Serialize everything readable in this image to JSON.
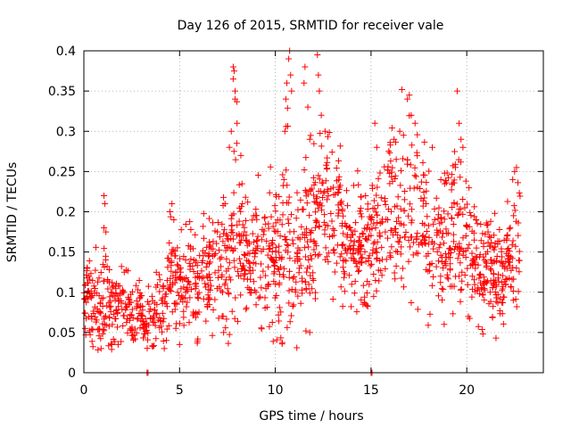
{
  "chart_data": {
    "type": "scatter",
    "title": "Day 126 of 2015, SRMTID for receiver vale",
    "xlabel": "GPS time / hours",
    "ylabel": "SRMTID / TECUs",
    "xlim": [
      0,
      24
    ],
    "ylim": [
      0,
      0.4
    ],
    "xticks": [
      0,
      5,
      10,
      15,
      20
    ],
    "yticks": [
      0,
      0.05,
      0.1,
      0.15,
      0.2,
      0.25,
      0.3,
      0.35,
      0.4
    ],
    "xtick_labels": [
      "0",
      "5",
      "10",
      "15",
      "20"
    ],
    "ytick_labels": [
      "0",
      "0.05",
      "0.1",
      "0.15",
      "0.2",
      "0.25",
      "0.3",
      "0.35",
      "0.4"
    ],
    "grid": true,
    "marker": "+",
    "color": "#ff0000",
    "series": [
      {
        "name": "SRMTID",
        "trend": {
          "x": [
            0,
            1,
            2,
            2.5,
            3,
            3.5,
            4,
            4.5,
            5,
            5.5,
            6,
            7,
            7.5,
            8,
            8.5,
            9,
            10,
            10.5,
            11,
            11.5,
            12,
            12.5,
            13,
            13.5,
            14,
            15,
            15.5,
            16,
            16.5,
            17,
            17.5,
            18,
            18.5,
            19,
            19.5,
            20,
            20.5,
            21,
            21.5,
            22,
            22.5,
            22.8
          ],
          "y": [
            0.085,
            0.09,
            0.085,
            0.075,
            0.065,
            0.07,
            0.075,
            0.11,
            0.12,
            0.11,
            0.12,
            0.135,
            0.14,
            0.17,
            0.15,
            0.14,
            0.15,
            0.165,
            0.14,
            0.15,
            0.18,
            0.22,
            0.2,
            0.175,
            0.15,
            0.16,
            0.19,
            0.21,
            0.2,
            0.215,
            0.21,
            0.175,
            0.16,
            0.18,
            0.185,
            0.17,
            0.14,
            0.135,
            0.125,
            0.12,
            0.155,
            0.17
          ],
          "spread": [
            0.025,
            0.03,
            0.025,
            0.02,
            0.015,
            0.02,
            0.02,
            0.03,
            0.03,
            0.03,
            0.03,
            0.035,
            0.05,
            0.06,
            0.045,
            0.04,
            0.045,
            0.06,
            0.045,
            0.05,
            0.05,
            0.05,
            0.04,
            0.04,
            0.035,
            0.04,
            0.05,
            0.045,
            0.05,
            0.05,
            0.045,
            0.04,
            0.04,
            0.05,
            0.055,
            0.04,
            0.035,
            0.03,
            0.03,
            0.03,
            0.04,
            0.04
          ]
        },
        "peaks": [
          {
            "x": 1.05,
            "y": 0.22
          },
          {
            "x": 1.1,
            "y": 0.21
          },
          {
            "x": 1.05,
            "y": 0.18
          },
          {
            "x": 1.15,
            "y": 0.175
          },
          {
            "x": 4.5,
            "y": 0.2
          },
          {
            "x": 4.6,
            "y": 0.21
          },
          {
            "x": 4.7,
            "y": 0.19
          },
          {
            "x": 7.6,
            "y": 0.28
          },
          {
            "x": 7.7,
            "y": 0.3
          },
          {
            "x": 7.8,
            "y": 0.38
          },
          {
            "x": 7.85,
            "y": 0.375
          },
          {
            "x": 7.8,
            "y": 0.365
          },
          {
            "x": 7.9,
            "y": 0.35
          },
          {
            "x": 7.9,
            "y": 0.34
          },
          {
            "x": 8.0,
            "y": 0.31
          },
          {
            "x": 8.2,
            "y": 0.27
          },
          {
            "x": 10.5,
            "y": 0.3
          },
          {
            "x": 10.55,
            "y": 0.34
          },
          {
            "x": 10.6,
            "y": 0.36
          },
          {
            "x": 10.7,
            "y": 0.39
          },
          {
            "x": 10.75,
            "y": 0.4
          },
          {
            "x": 10.8,
            "y": 0.37
          },
          {
            "x": 10.85,
            "y": 0.35
          },
          {
            "x": 11.5,
            "y": 0.36
          },
          {
            "x": 11.55,
            "y": 0.38
          },
          {
            "x": 11.7,
            "y": 0.33
          },
          {
            "x": 11.8,
            "y": 0.29
          },
          {
            "x": 12.2,
            "y": 0.395
          },
          {
            "x": 12.25,
            "y": 0.37
          },
          {
            "x": 12.3,
            "y": 0.35
          },
          {
            "x": 12.4,
            "y": 0.32
          },
          {
            "x": 12.6,
            "y": 0.3
          },
          {
            "x": 15.2,
            "y": 0.31
          },
          {
            "x": 15.3,
            "y": 0.28
          },
          {
            "x": 16.2,
            "y": 0.29
          },
          {
            "x": 16.5,
            "y": 0.3
          },
          {
            "x": 16.9,
            "y": 0.34
          },
          {
            "x": 17.0,
            "y": 0.345
          },
          {
            "x": 17.1,
            "y": 0.32
          },
          {
            "x": 17.3,
            "y": 0.31
          },
          {
            "x": 18.2,
            "y": 0.28
          },
          {
            "x": 19.5,
            "y": 0.35
          },
          {
            "x": 19.6,
            "y": 0.31
          },
          {
            "x": 19.7,
            "y": 0.29
          },
          {
            "x": 19.8,
            "y": 0.28
          },
          {
            "x": 22.5,
            "y": 0.25
          },
          {
            "x": 22.6,
            "y": 0.255
          },
          {
            "x": 22.4,
            "y": 0.24
          }
        ],
        "lows": [
          {
            "x": 3.3,
            "y": 0.0
          },
          {
            "x": 3.35,
            "y": 0.0
          },
          {
            "x": 15.0,
            "y": 0.0
          },
          {
            "x": 15.05,
            "y": 0.0
          },
          {
            "x": 4.2,
            "y": 0.03
          },
          {
            "x": 5.0,
            "y": 0.035
          },
          {
            "x": 0.9,
            "y": 0.03
          },
          {
            "x": 11.8,
            "y": 0.05
          },
          {
            "x": 11.6,
            "y": 0.052
          },
          {
            "x": 7.3,
            "y": 0.05
          }
        ],
        "n_points": 1650
      }
    ]
  }
}
